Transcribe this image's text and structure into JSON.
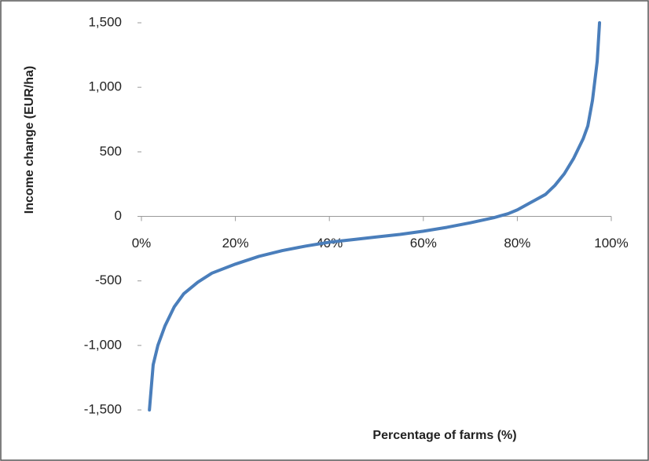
{
  "chart_data": {
    "type": "line",
    "x_label": "Percentage of farms (%)",
    "y_label": "Income change  (EUR/ha)",
    "xlim": [
      0,
      100
    ],
    "xticks": [
      {
        "value": 0,
        "label": "0%"
      },
      {
        "value": 20,
        "label": "20%"
      },
      {
        "value": 40,
        "label": "40%"
      },
      {
        "value": 60,
        "label": "60%"
      },
      {
        "value": 80,
        "label": "80%"
      },
      {
        "value": 100,
        "label": "100%"
      }
    ],
    "ylim": [
      -1500,
      1500
    ],
    "yticks": [
      {
        "value": -1500,
        "label": "-1,500"
      },
      {
        "value": -1000,
        "label": "-1,000"
      },
      {
        "value": -500,
        "label": "-500"
      },
      {
        "value": 0,
        "label": "0"
      },
      {
        "value": 500,
        "label": "500"
      },
      {
        "value": 1000,
        "label": "1,000"
      },
      {
        "value": 1500,
        "label": "1,500"
      }
    ],
    "grid": false,
    "x": [
      1.7,
      2.5,
      3.5,
      5,
      7,
      9,
      12,
      15,
      20,
      25,
      30,
      35,
      40,
      45,
      50,
      55,
      60,
      65,
      70,
      75,
      78,
      80,
      83,
      86,
      88,
      90,
      92,
      94,
      95,
      96,
      97,
      97.5
    ],
    "series": [
      {
        "color": "#4a7ebb",
        "values": [
          -1500,
          -1150,
          -1000,
          -850,
          -700,
          -600,
          -510,
          -440,
          -370,
          -310,
          -265,
          -230,
          -200,
          -180,
          -160,
          -140,
          -115,
          -85,
          -50,
          -10,
          20,
          50,
          110,
          170,
          240,
          330,
          450,
          600,
          700,
          900,
          1200,
          1500
        ]
      }
    ]
  }
}
